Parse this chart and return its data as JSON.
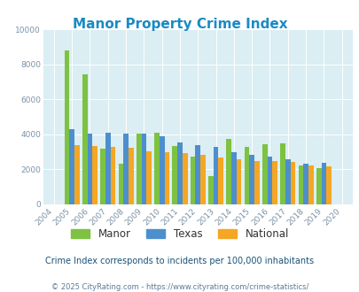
{
  "title": "Manor Property Crime Index",
  "years": [
    2004,
    2005,
    2006,
    2007,
    2008,
    2009,
    2010,
    2011,
    2012,
    2013,
    2014,
    2015,
    2016,
    2017,
    2018,
    2019,
    2020
  ],
  "manor": [
    0,
    8800,
    7400,
    3200,
    2300,
    4050,
    4100,
    3350,
    2750,
    1600,
    3750,
    3300,
    3450,
    3500,
    2200,
    2050,
    0
  ],
  "texas": [
    0,
    4300,
    4050,
    4100,
    4050,
    4050,
    3900,
    3550,
    3400,
    3300,
    3000,
    2850,
    2750,
    2600,
    2300,
    2350,
    0
  ],
  "national": [
    0,
    3400,
    3350,
    3300,
    3250,
    3050,
    3000,
    2950,
    2850,
    2700,
    2600,
    2500,
    2450,
    2400,
    2200,
    2150,
    0
  ],
  "manor_color": "#7dc242",
  "texas_color": "#4d8fcc",
  "national_color": "#f5a623",
  "bg_color": "#daeef3",
  "ylim": [
    0,
    10000
  ],
  "yticks": [
    0,
    2000,
    4000,
    6000,
    8000,
    10000
  ],
  "subtitle": "Crime Index corresponds to incidents per 100,000 inhabitants",
  "footer": "© 2025 CityRating.com - https://www.cityrating.com/crime-statistics/",
  "title_color": "#1a8bc4",
  "tick_color": "#7b93a8",
  "subtitle_color": "#1a5276",
  "footer_color": "#5d7a94",
  "legend_labels": [
    "Manor",
    "Texas",
    "National"
  ]
}
